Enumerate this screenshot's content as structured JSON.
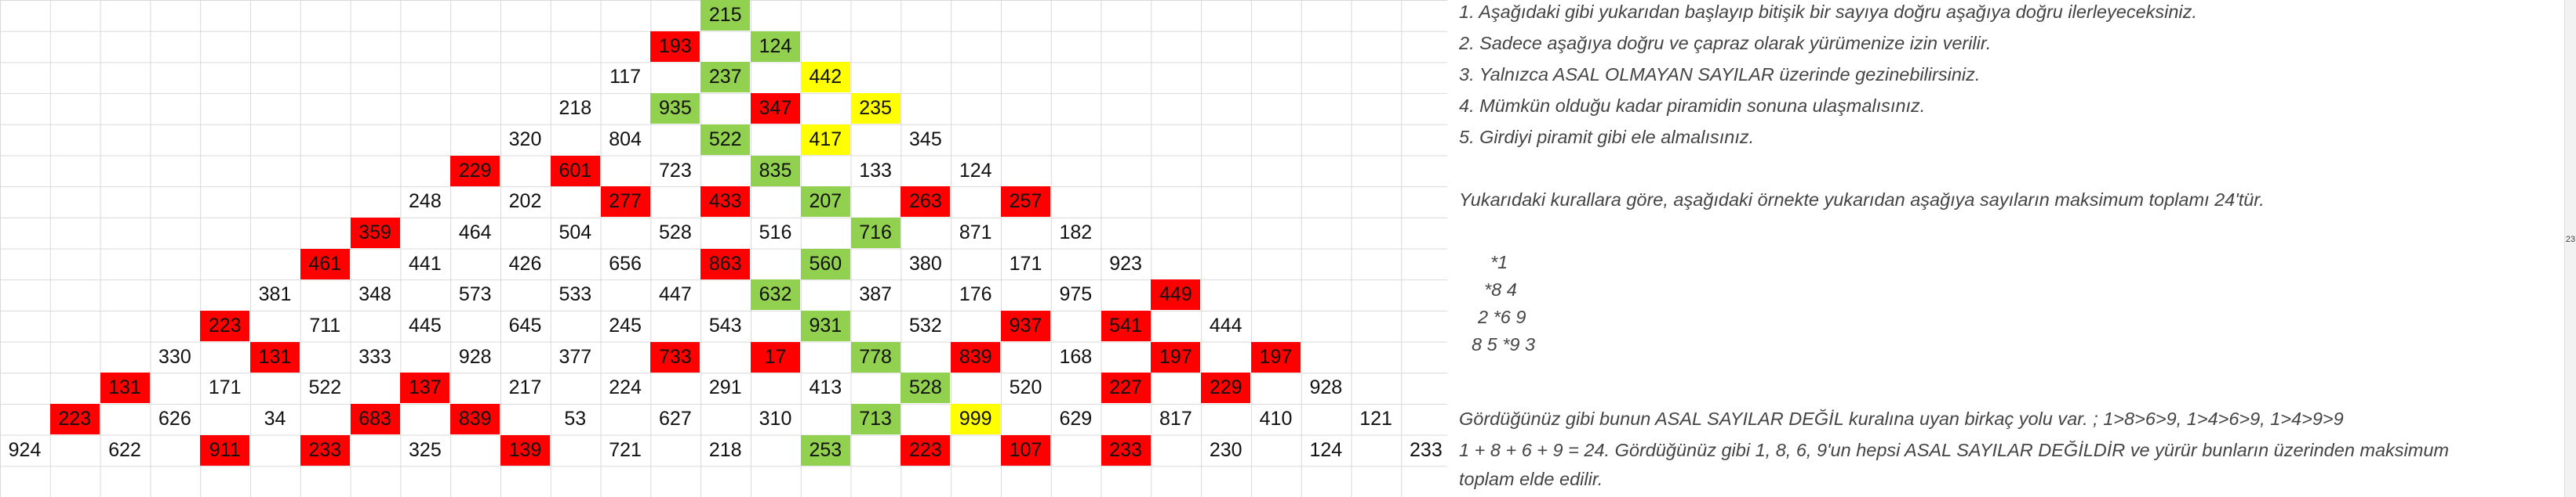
{
  "notes": {
    "lines": [
      "1. Aşağıdaki gibi yukarıdan başlayıp bitişik bir sayıya doğru aşağıya doğru ilerleyeceksiniz.",
      "2. Sadece aşağıya doğru ve çapraz olarak yürümenize izin verilir.",
      "3. Yalnızca ASAL OLMAYAN SAYILAR üzerinde gezinebilirsiniz.",
      "4. Mümkün olduğu kadar piramidin sonuna ulaşmalısınız.",
      "5. Girdiyi piramit gibi ele almalısınız.",
      "Yukarıdaki kurallara göre, aşağıdaki örnekte yukarıdan aşağıya sayıların maksimum toplamı 24'tür.",
      "*1",
      "*8 4",
      "2 *6 9",
      "8 5 *9 3",
      "Gördüğünüz gibi bunun ASAL SAYILAR DEĞİL kuralına uyan birkaç yolu var. ; 1>8>6>9, 1>4>6>9, 1>4>9>9",
      "1 + 8 + 6 + 9 = 24. Gördüğünüz gibi 1, 8, 6, 9'un hepsi ASAL SAYILAR DEĞİLDİR ve yürür bunların üzerinden maksimum",
      "toplam elde edilir."
    ]
  },
  "scrollbar": {
    "label": "23"
  },
  "colors": {
    "red": "#ff0000",
    "green": "#92d050",
    "yellow": "#ffff00"
  },
  "cells": [
    {
      "v": "215",
      "c": "green"
    },
    {
      "v": "193",
      "c": "red"
    },
    {
      "v": "124",
      "c": "green"
    },
    {
      "v": "117",
      "c": ""
    },
    {
      "v": "237",
      "c": "green"
    },
    {
      "v": "442",
      "c": "yellow"
    },
    {
      "v": "218",
      "c": ""
    },
    {
      "v": "935",
      "c": "green"
    },
    {
      "v": "347",
      "c": "red"
    },
    {
      "v": "235",
      "c": "yellow"
    },
    {
      "v": "320",
      "c": ""
    },
    {
      "v": "804",
      "c": ""
    },
    {
      "v": "522",
      "c": "green"
    },
    {
      "v": "417",
      "c": "yellow"
    },
    {
      "v": "345",
      "c": ""
    },
    {
      "v": "229",
      "c": "red"
    },
    {
      "v": "601",
      "c": "red"
    },
    {
      "v": "723",
      "c": ""
    },
    {
      "v": "835",
      "c": "green"
    },
    {
      "v": "133",
      "c": ""
    },
    {
      "v": "124",
      "c": ""
    },
    {
      "v": "248",
      "c": ""
    },
    {
      "v": "202",
      "c": ""
    },
    {
      "v": "277",
      "c": "red"
    },
    {
      "v": "433",
      "c": "red"
    },
    {
      "v": "207",
      "c": "green"
    },
    {
      "v": "263",
      "c": "red"
    },
    {
      "v": "257",
      "c": "red"
    },
    {
      "v": "359",
      "c": "red"
    },
    {
      "v": "464",
      "c": ""
    },
    {
      "v": "504",
      "c": ""
    },
    {
      "v": "528",
      "c": ""
    },
    {
      "v": "516",
      "c": ""
    },
    {
      "v": "716",
      "c": "green"
    },
    {
      "v": "871",
      "c": ""
    },
    {
      "v": "182",
      "c": ""
    },
    {
      "v": "461",
      "c": "red"
    },
    {
      "v": "441",
      "c": ""
    },
    {
      "v": "426",
      "c": ""
    },
    {
      "v": "656",
      "c": ""
    },
    {
      "v": "863",
      "c": "red"
    },
    {
      "v": "560",
      "c": "green"
    },
    {
      "v": "380",
      "c": ""
    },
    {
      "v": "171",
      "c": ""
    },
    {
      "v": "923",
      "c": ""
    },
    {
      "v": "381",
      "c": ""
    },
    {
      "v": "348",
      "c": ""
    },
    {
      "v": "573",
      "c": ""
    },
    {
      "v": "533",
      "c": ""
    },
    {
      "v": "447",
      "c": ""
    },
    {
      "v": "632",
      "c": "green"
    },
    {
      "v": "387",
      "c": ""
    },
    {
      "v": "176",
      "c": ""
    },
    {
      "v": "975",
      "c": ""
    },
    {
      "v": "449",
      "c": "red"
    },
    {
      "v": "223",
      "c": "red"
    },
    {
      "v": "711",
      "c": ""
    },
    {
      "v": "445",
      "c": ""
    },
    {
      "v": "645",
      "c": ""
    },
    {
      "v": "245",
      "c": ""
    },
    {
      "v": "543",
      "c": ""
    },
    {
      "v": "931",
      "c": "green"
    },
    {
      "v": "532",
      "c": ""
    },
    {
      "v": "937",
      "c": "red"
    },
    {
      "v": "541",
      "c": "red"
    },
    {
      "v": "444",
      "c": ""
    },
    {
      "v": "330",
      "c": ""
    },
    {
      "v": "131",
      "c": "red"
    },
    {
      "v": "333",
      "c": ""
    },
    {
      "v": "928",
      "c": ""
    },
    {
      "v": "377",
      "c": ""
    },
    {
      "v": "733",
      "c": "red"
    },
    {
      "v": "17",
      "c": "red"
    },
    {
      "v": "778",
      "c": "green"
    },
    {
      "v": "839",
      "c": "red"
    },
    {
      "v": "168",
      "c": ""
    },
    {
      "v": "197",
      "c": "red"
    },
    {
      "v": "197",
      "c": "red"
    },
    {
      "v": "131",
      "c": "red"
    },
    {
      "v": "171",
      "c": ""
    },
    {
      "v": "522",
      "c": ""
    },
    {
      "v": "137",
      "c": "red"
    },
    {
      "v": "217",
      "c": ""
    },
    {
      "v": "224",
      "c": ""
    },
    {
      "v": "291",
      "c": ""
    },
    {
      "v": "413",
      "c": ""
    },
    {
      "v": "528",
      "c": "green"
    },
    {
      "v": "520",
      "c": ""
    },
    {
      "v": "227",
      "c": "red"
    },
    {
      "v": "229",
      "c": "red"
    },
    {
      "v": "928",
      "c": ""
    },
    {
      "v": "223",
      "c": "red"
    },
    {
      "v": "626",
      "c": ""
    },
    {
      "v": "34",
      "c": ""
    },
    {
      "v": "683",
      "c": "red"
    },
    {
      "v": "839",
      "c": "red"
    },
    {
      "v": "53",
      "c": ""
    },
    {
      "v": "627",
      "c": ""
    },
    {
      "v": "310",
      "c": ""
    },
    {
      "v": "713",
      "c": "green"
    },
    {
      "v": "999",
      "c": "yellow"
    },
    {
      "v": "629",
      "c": ""
    },
    {
      "v": "817",
      "c": ""
    },
    {
      "v": "410",
      "c": ""
    },
    {
      "v": "121",
      "c": ""
    },
    {
      "v": "924",
      "c": ""
    },
    {
      "v": "622",
      "c": ""
    },
    {
      "v": "911",
      "c": "red"
    },
    {
      "v": "233",
      "c": "red"
    },
    {
      "v": "325",
      "c": ""
    },
    {
      "v": "139",
      "c": "red"
    },
    {
      "v": "721",
      "c": ""
    },
    {
      "v": "218",
      "c": ""
    },
    {
      "v": "253",
      "c": "green"
    },
    {
      "v": "223",
      "c": "red"
    },
    {
      "v": "107",
      "c": "red"
    },
    {
      "v": "233",
      "c": "red"
    },
    {
      "v": "230",
      "c": ""
    },
    {
      "v": "124",
      "c": ""
    },
    {
      "v": "233",
      "c": ""
    }
  ]
}
